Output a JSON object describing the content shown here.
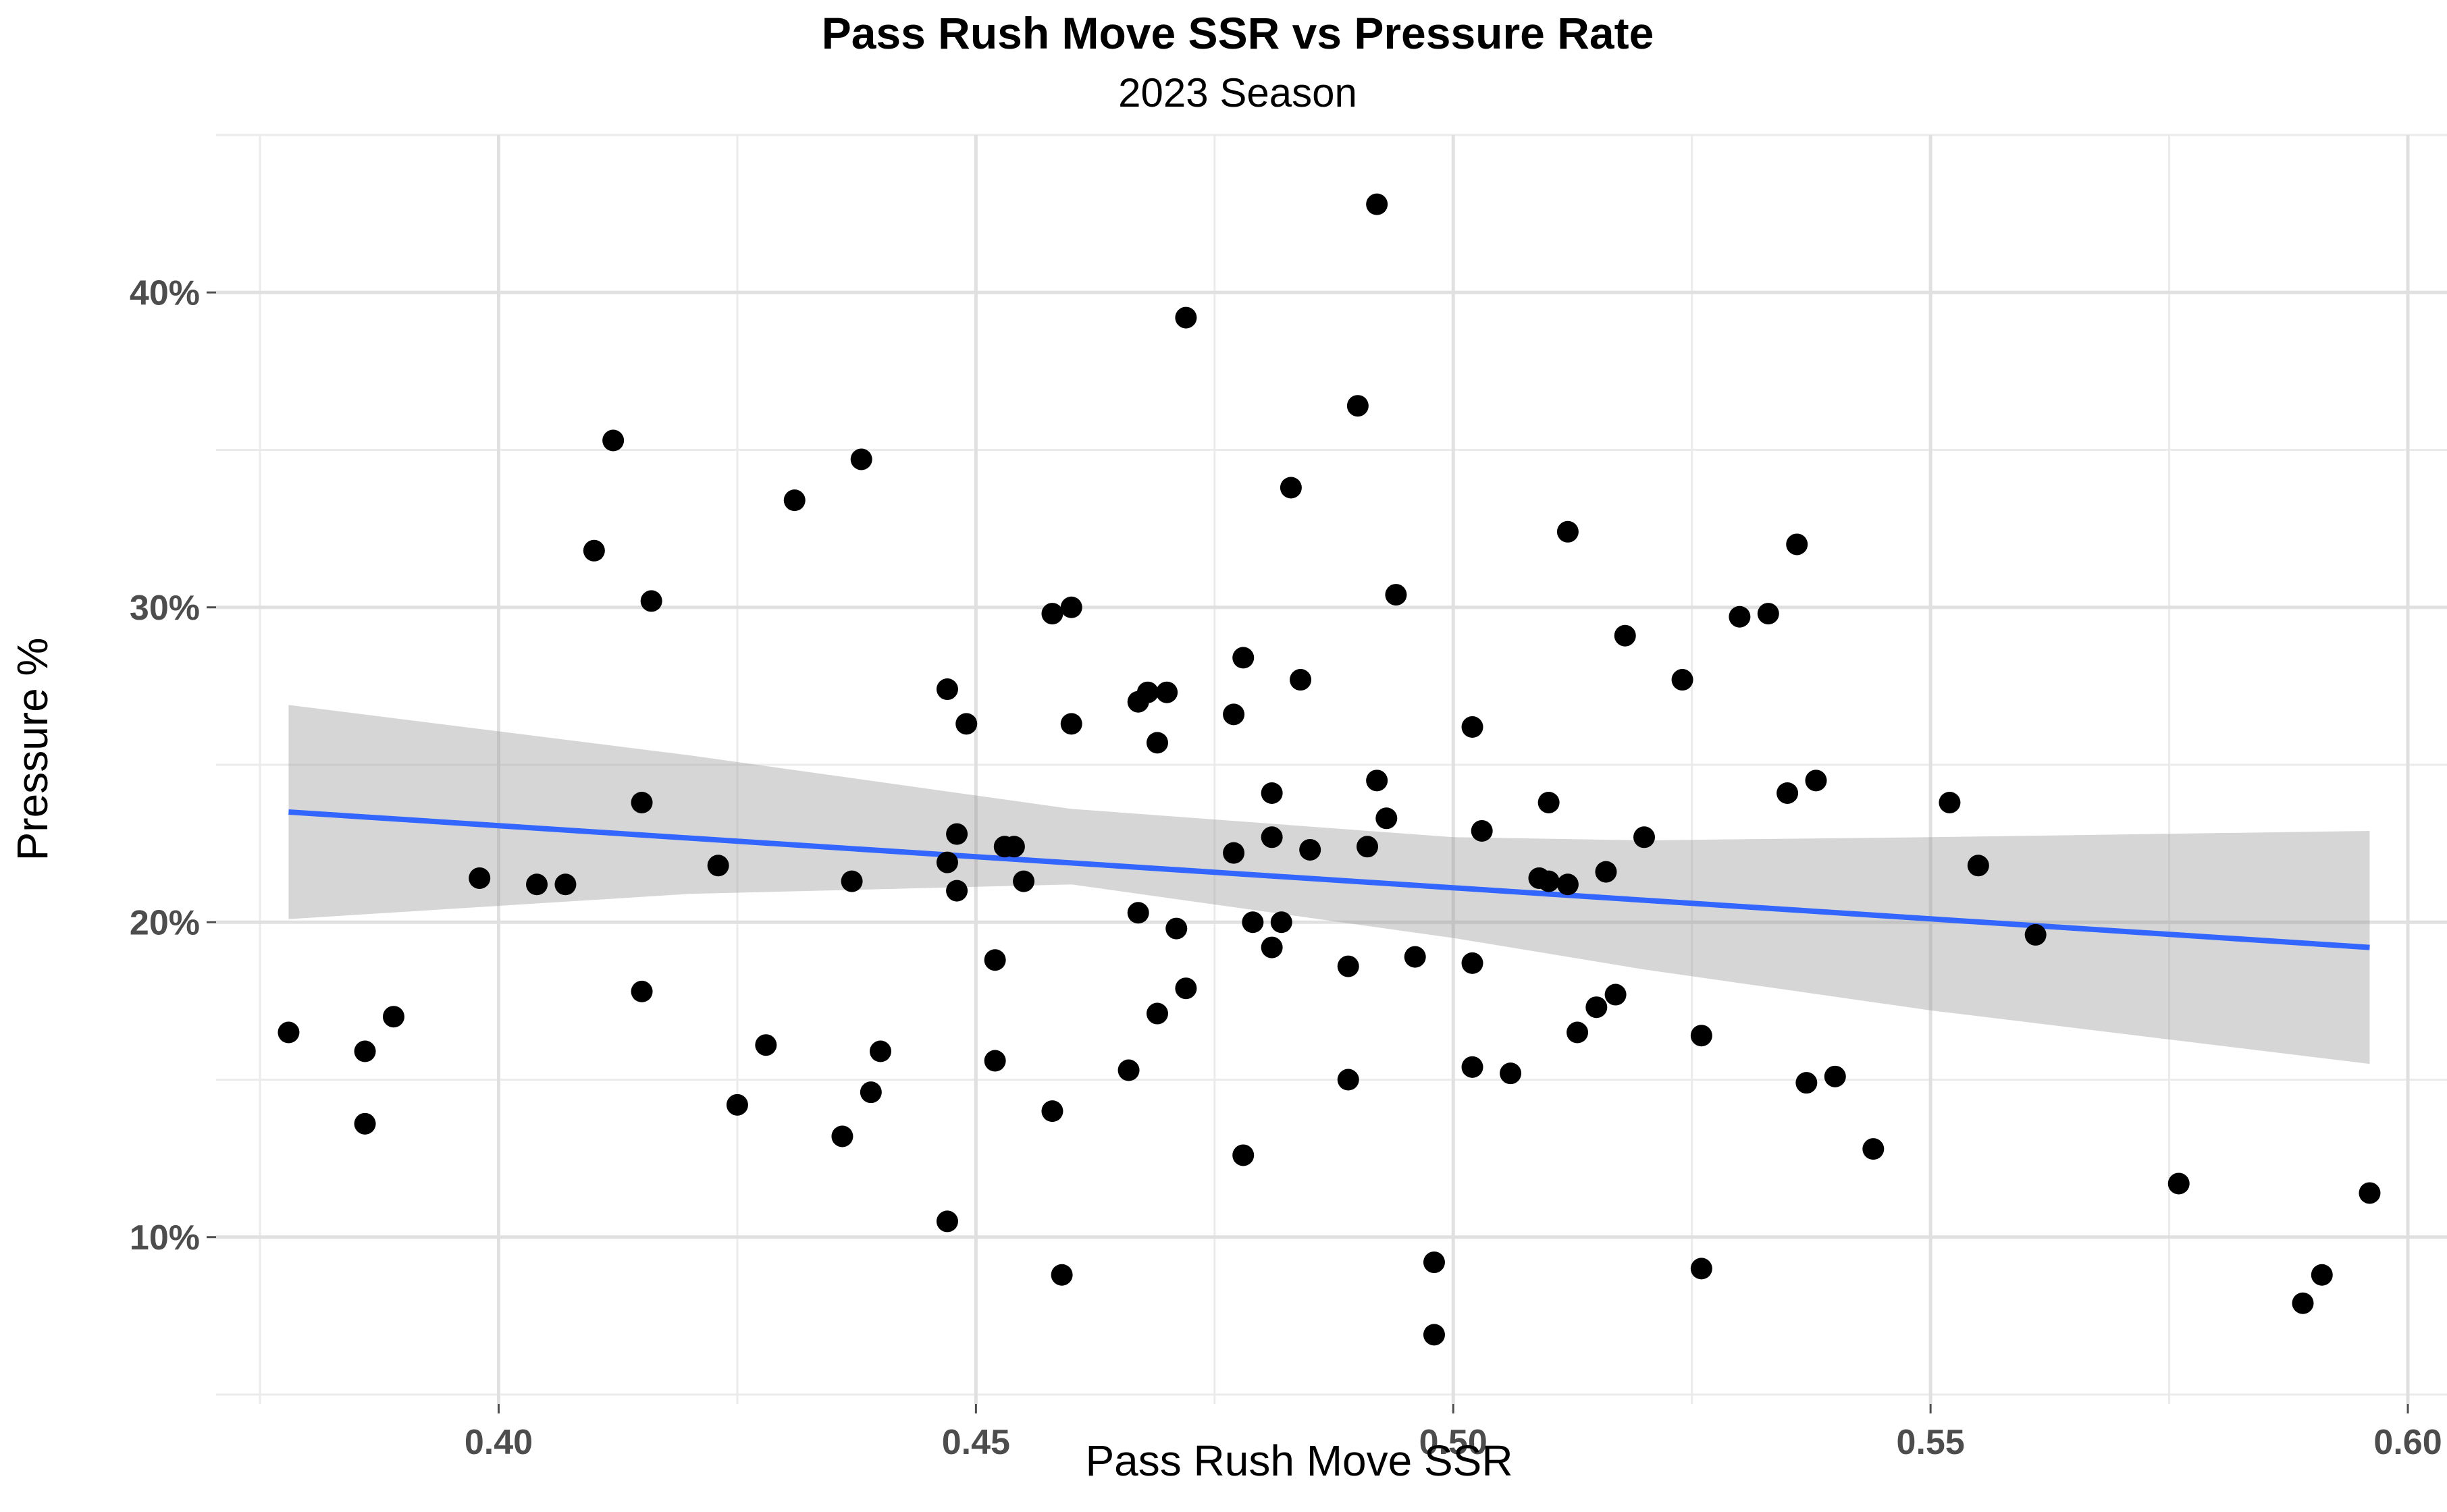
{
  "chart_data": {
    "type": "scatter",
    "title": "Pass Rush Move SSR vs Pressure Rate",
    "subtitle": "2023 Season",
    "xlabel": "Pass Rush Move SSR",
    "ylabel": "Pressure %",
    "xlim": [
      0.3704,
      0.6041
    ],
    "ylim": [
      0.047,
      0.45
    ],
    "x_ticks": [
      0.4,
      0.45,
      0.5,
      0.55,
      0.6
    ],
    "x_tick_labels": [
      "0.40",
      "0.45",
      "0.50",
      "0.55",
      "0.60"
    ],
    "y_ticks": [
      0.1,
      0.2,
      0.3,
      0.4
    ],
    "y_tick_labels": [
      "10%",
      "20%",
      "30%",
      "40%"
    ],
    "grid": true,
    "legend": "none",
    "point_color": "#000000",
    "trend_color": "#3366ff",
    "band_color": "#999999",
    "points": [
      [
        0.378,
        0.165
      ],
      [
        0.386,
        0.159
      ],
      [
        0.386,
        0.136
      ],
      [
        0.389,
        0.17
      ],
      [
        0.398,
        0.214
      ],
      [
        0.404,
        0.212
      ],
      [
        0.407,
        0.212
      ],
      [
        0.41,
        0.318
      ],
      [
        0.412,
        0.353
      ],
      [
        0.415,
        0.178
      ],
      [
        0.415,
        0.238
      ],
      [
        0.416,
        0.302
      ],
      [
        0.423,
        0.218
      ],
      [
        0.425,
        0.142
      ],
      [
        0.428,
        0.161
      ],
      [
        0.431,
        0.334
      ],
      [
        0.436,
        0.132
      ],
      [
        0.437,
        0.213
      ],
      [
        0.438,
        0.347
      ],
      [
        0.439,
        0.146
      ],
      [
        0.44,
        0.159
      ],
      [
        0.447,
        0.219
      ],
      [
        0.447,
        0.274
      ],
      [
        0.447,
        0.105
      ],
      [
        0.448,
        0.228
      ],
      [
        0.448,
        0.21
      ],
      [
        0.449,
        0.263
      ],
      [
        0.452,
        0.188
      ],
      [
        0.452,
        0.156
      ],
      [
        0.453,
        0.224
      ],
      [
        0.454,
        0.224
      ],
      [
        0.455,
        0.213
      ],
      [
        0.458,
        0.298
      ],
      [
        0.458,
        0.14
      ],
      [
        0.459,
        0.088
      ],
      [
        0.46,
        0.263
      ],
      [
        0.46,
        0.3
      ],
      [
        0.466,
        0.153
      ],
      [
        0.467,
        0.203
      ],
      [
        0.467,
        0.27
      ],
      [
        0.468,
        0.273
      ],
      [
        0.469,
        0.257
      ],
      [
        0.469,
        0.171
      ],
      [
        0.47,
        0.273
      ],
      [
        0.471,
        0.198
      ],
      [
        0.472,
        0.179
      ],
      [
        0.472,
        0.392
      ],
      [
        0.477,
        0.266
      ],
      [
        0.477,
        0.222
      ],
      [
        0.478,
        0.284
      ],
      [
        0.478,
        0.126
      ],
      [
        0.479,
        0.2
      ],
      [
        0.481,
        0.192
      ],
      [
        0.481,
        0.241
      ],
      [
        0.481,
        0.227
      ],
      [
        0.482,
        0.2
      ],
      [
        0.483,
        0.338
      ],
      [
        0.484,
        0.277
      ],
      [
        0.485,
        0.223
      ],
      [
        0.489,
        0.186
      ],
      [
        0.489,
        0.15
      ],
      [
        0.49,
        0.364
      ],
      [
        0.491,
        0.224
      ],
      [
        0.492,
        0.428
      ],
      [
        0.492,
        0.245
      ],
      [
        0.493,
        0.233
      ],
      [
        0.494,
        0.304
      ],
      [
        0.496,
        0.189
      ],
      [
        0.498,
        0.069
      ],
      [
        0.498,
        0.092
      ],
      [
        0.502,
        0.262
      ],
      [
        0.502,
        0.187
      ],
      [
        0.502,
        0.154
      ],
      [
        0.503,
        0.229
      ],
      [
        0.506,
        0.152
      ],
      [
        0.509,
        0.214
      ],
      [
        0.51,
        0.213
      ],
      [
        0.51,
        0.238
      ],
      [
        0.512,
        0.212
      ],
      [
        0.512,
        0.324
      ],
      [
        0.513,
        0.165
      ],
      [
        0.515,
        0.173
      ],
      [
        0.516,
        0.216
      ],
      [
        0.517,
        0.177
      ],
      [
        0.518,
        0.291
      ],
      [
        0.52,
        0.227
      ],
      [
        0.524,
        0.277
      ],
      [
        0.526,
        0.09
      ],
      [
        0.526,
        0.164
      ],
      [
        0.53,
        0.297
      ],
      [
        0.533,
        0.298
      ],
      [
        0.535,
        0.241
      ],
      [
        0.536,
        0.32
      ],
      [
        0.537,
        0.149
      ],
      [
        0.538,
        0.245
      ],
      [
        0.54,
        0.151
      ],
      [
        0.544,
        0.128
      ],
      [
        0.552,
        0.238
      ],
      [
        0.555,
        0.218
      ],
      [
        0.561,
        0.196
      ],
      [
        0.576,
        0.117
      ],
      [
        0.589,
        0.079
      ],
      [
        0.591,
        0.088
      ],
      [
        0.596,
        0.114
      ]
    ],
    "trend_line": {
      "x": [
        0.378,
        0.596
      ],
      "y": [
        0.235,
        0.192
      ]
    },
    "confidence_band": {
      "x": [
        0.378,
        0.42,
        0.46,
        0.5,
        0.52,
        0.55,
        0.596
      ],
      "upper": [
        0.269,
        0.253,
        0.236,
        0.227,
        0.226,
        0.227,
        0.229
      ],
      "lower": [
        0.201,
        0.209,
        0.212,
        0.195,
        0.185,
        0.172,
        0.155
      ]
    }
  }
}
